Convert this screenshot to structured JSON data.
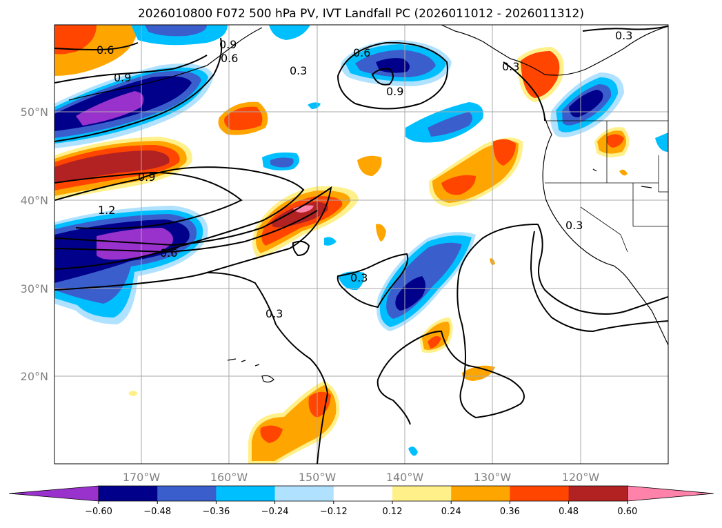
{
  "title": "2026010800 F072 500 hPa PV, IVT Landfall PC (2026011012 - 2026011312)",
  "lat_labels": [
    "50°N",
    "40°N",
    "30°N",
    "20°N"
  ],
  "lon_labels": [
    "170°W",
    "160°W",
    "150°W",
    "140°W",
    "130°W",
    "120°W"
  ],
  "colorbar": {
    "colors": [
      "#9932cc",
      "#00008b",
      "#3a5fcd",
      "#00bfff",
      "#b0e2ff",
      "#ffffff",
      "#fff08a",
      "#ffa500",
      "#ff4500",
      "#b22222",
      "#ff82ab"
    ],
    "tick_labels": [
      "−0.60",
      "−0.48",
      "−0.36",
      "−0.24",
      "−0.12",
      "0.12",
      "0.24",
      "0.36",
      "0.48",
      "0.60"
    ]
  },
  "contour_labels": [
    "0.6",
    "0.9",
    "0.6",
    "0.9",
    "0.3",
    "0.6",
    "0.9",
    "0.3",
    "0.3",
    "0.9",
    "1.2",
    "0.6",
    "0.3",
    "0.3",
    "0.3"
  ]
}
